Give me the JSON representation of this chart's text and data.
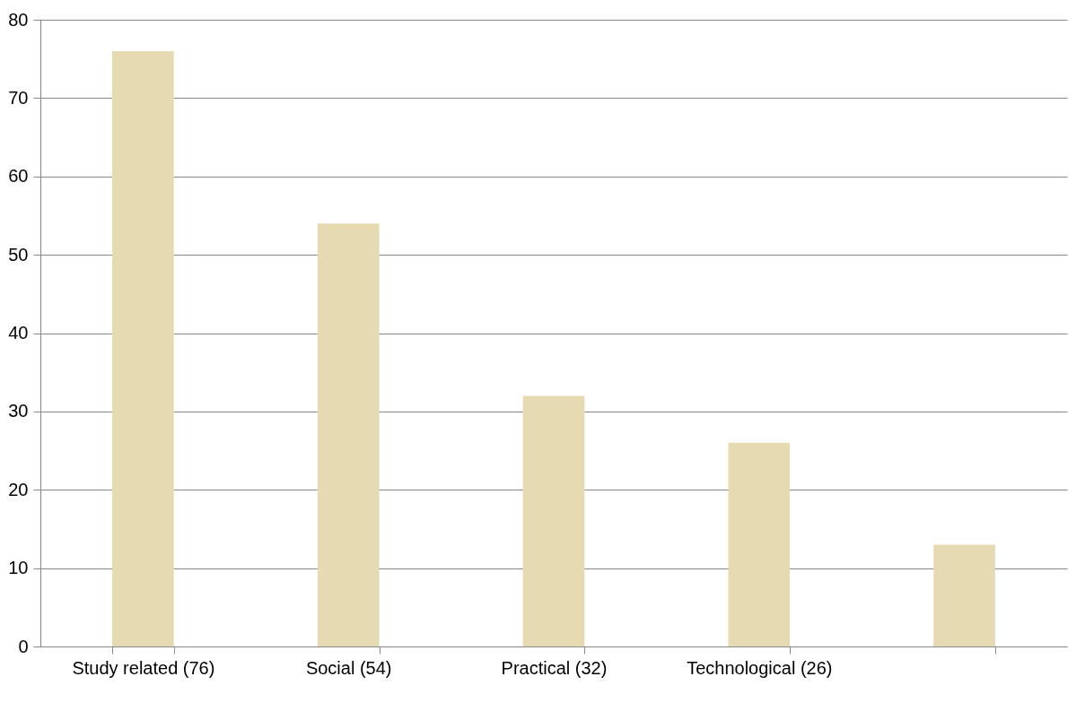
{
  "chart_data": {
    "type": "bar",
    "categories": [
      "Study related (76)",
      "Social (54)",
      "Practical (32)",
      "Technological (26)",
      null
    ],
    "values": [
      76,
      54,
      32,
      26,
      13
    ],
    "color": "#e6dab2",
    "ylim": [
      0,
      80
    ],
    "yticks": [
      0,
      10,
      20,
      30,
      40,
      50,
      60,
      70,
      80
    ],
    "grid": "y"
  }
}
